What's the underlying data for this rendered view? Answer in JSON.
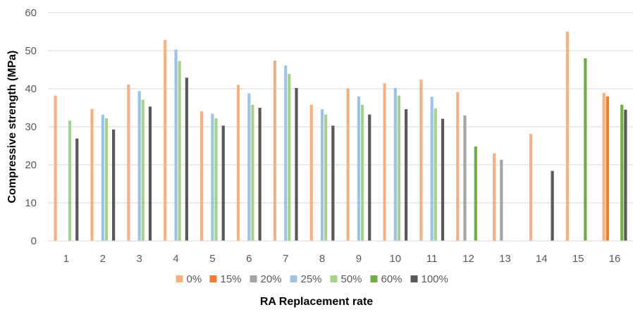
{
  "chart_data": {
    "type": "bar",
    "title": "",
    "xlabel": "RA Replacement rate",
    "ylabel": "Compressive strength (MPa)",
    "ylim": [
      0,
      60
    ],
    "yticks": [
      "0",
      "10",
      "20",
      "30",
      "40",
      "50",
      "60"
    ],
    "categories": [
      "1",
      "2",
      "3",
      "4",
      "5",
      "6",
      "7",
      "8",
      "9",
      "10",
      "11",
      "12",
      "13",
      "14",
      "15",
      "16"
    ],
    "grid": true,
    "legend_position": "bottom",
    "series": [
      {
        "name": "0%",
        "color": "#F4B183",
        "values": [
          38.2,
          34.7,
          41.1,
          52.8,
          34.1,
          41.0,
          47.4,
          35.8,
          40.1,
          41.4,
          42.4,
          39.1,
          23.0,
          28.1,
          55.0,
          38.9
        ]
      },
      {
        "name": "15%",
        "color": "#ED7D31",
        "values": [
          null,
          null,
          null,
          null,
          null,
          null,
          null,
          null,
          null,
          null,
          null,
          null,
          null,
          null,
          null,
          38.0
        ]
      },
      {
        "name": "20%",
        "color": "#A5A5A5",
        "values": [
          null,
          null,
          null,
          null,
          null,
          null,
          null,
          null,
          null,
          null,
          null,
          33.0,
          21.3,
          null,
          null,
          null
        ]
      },
      {
        "name": "25%",
        "color": "#9DC3E6",
        "values": [
          null,
          33.2,
          39.4,
          50.3,
          33.4,
          38.8,
          46.1,
          34.6,
          38.0,
          40.2,
          37.9,
          null,
          null,
          null,
          null,
          null
        ]
      },
      {
        "name": "50%",
        "color": "#A9D18E",
        "values": [
          31.6,
          32.2,
          37.1,
          47.3,
          32.2,
          35.8,
          43.9,
          33.2,
          35.8,
          38.2,
          34.8,
          null,
          null,
          null,
          null,
          null
        ]
      },
      {
        "name": "60%",
        "color": "#70AD47",
        "values": [
          null,
          null,
          null,
          null,
          null,
          null,
          null,
          null,
          null,
          null,
          null,
          24.8,
          null,
          null,
          48.0,
          35.8
        ]
      },
      {
        "name": "100%",
        "color": "#595959",
        "values": [
          26.9,
          29.3,
          35.3,
          42.9,
          30.3,
          35.0,
          40.2,
          30.3,
          33.2,
          34.6,
          32.1,
          null,
          null,
          18.4,
          null,
          34.5
        ]
      }
    ]
  }
}
